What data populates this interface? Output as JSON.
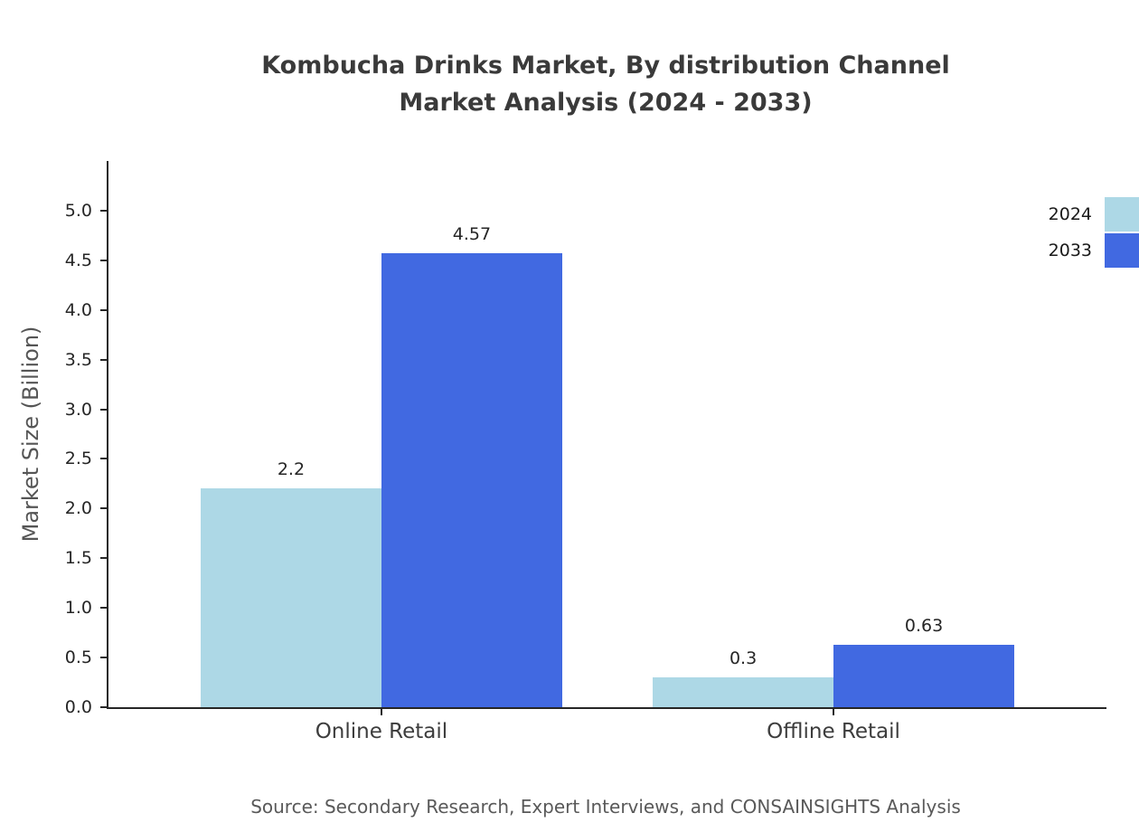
{
  "chart_data": {
    "type": "bar",
    "title": "Kombucha Drinks Market, By distribution Channel",
    "subtitle": "Market Analysis (2024 - 2033)",
    "ylabel": "Market Size (Billion)",
    "xlabel": "",
    "source_note": "Source: Secondary Research, Expert Interviews, and CONSAINSIGHTS Analysis",
    "categories": [
      "Online Retail",
      "Offline Retail"
    ],
    "series": [
      {
        "name": "2024",
        "color": "#add8e6",
        "values": [
          2.2,
          0.3
        ]
      },
      {
        "name": "2033",
        "color": "#4169e1",
        "values": [
          4.57,
          0.63
        ]
      }
    ],
    "value_labels": [
      [
        "2.2",
        "0.3"
      ],
      [
        "4.57",
        "0.63"
      ]
    ],
    "ylim": [
      0,
      5.5
    ],
    "yticks": [
      0.0,
      0.5,
      1.0,
      1.5,
      2.0,
      2.5,
      3.0,
      3.5,
      4.0,
      4.5,
      5.0
    ],
    "grid": false,
    "legend_position": "top-right"
  }
}
